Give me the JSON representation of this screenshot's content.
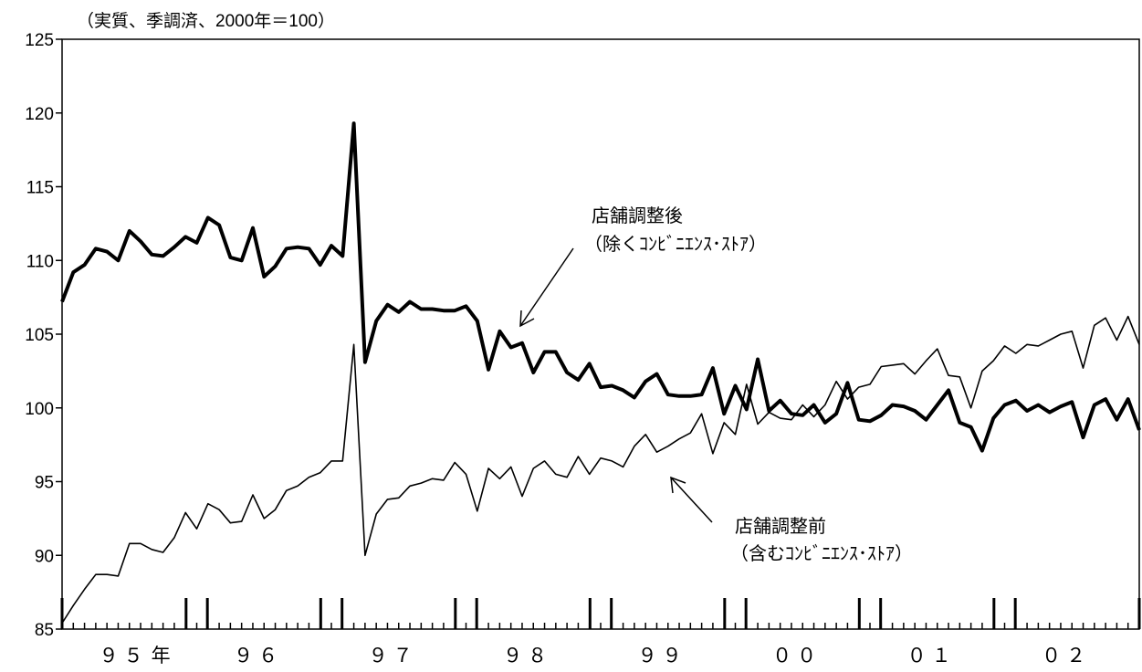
{
  "chart_data": {
    "type": "line",
    "title": "",
    "unit_note": "（実質、季調済、2000年＝100）",
    "ylim": [
      85,
      125
    ],
    "y_ticks": [
      "85",
      "90",
      "95",
      "100",
      "105",
      "110",
      "115",
      "120",
      "125"
    ],
    "x_year_labels": [
      "９５",
      "９６",
      "９７",
      "９８",
      "９９",
      "００",
      "０１",
      "０２"
    ],
    "x_year_suffix": "年",
    "grid": false,
    "series": [
      {
        "name": "店舗調整後（除くｺﾝﾋﾞﾆｴﾝｽ･ｽﾄｱ）",
        "style": "thick",
        "values": [
          107.2,
          109.2,
          109.7,
          110.8,
          110.6,
          110.0,
          112.0,
          111.3,
          110.4,
          110.3,
          110.9,
          111.6,
          111.2,
          112.9,
          112.4,
          110.2,
          110.0,
          112.2,
          108.9,
          109.6,
          110.8,
          110.9,
          110.8,
          109.7,
          111.0,
          110.3,
          119.3,
          103.1,
          105.9,
          107.0,
          106.5,
          107.2,
          106.7,
          106.7,
          106.6,
          106.6,
          106.9,
          105.9,
          102.6,
          105.2,
          104.1,
          104.4,
          102.4,
          103.8,
          103.8,
          102.4,
          101.9,
          103.0,
          101.4,
          101.5,
          101.2,
          100.7,
          101.8,
          102.3,
          100.9,
          100.8,
          100.8,
          100.9,
          102.7,
          99.6,
          101.5,
          99.9,
          103.3,
          99.8,
          100.5,
          99.6,
          99.5,
          100.2,
          99.0,
          99.6,
          101.7,
          99.2,
          99.1,
          99.5,
          100.2,
          100.1,
          99.8,
          99.2,
          100.2,
          101.2,
          99.0,
          98.7,
          97.1,
          99.3,
          100.2,
          100.5,
          99.8,
          100.2,
          99.7,
          100.1,
          100.4,
          98.0,
          100.2,
          100.6,
          99.2,
          100.6,
          98.5
        ]
      },
      {
        "name": "店舗調整前（含むｺﾝﾋﾞﾆｴﾝｽ･ｽﾄｱ）",
        "style": "thin",
        "values": [
          85.4,
          86.6,
          87.7,
          88.7,
          88.7,
          88.6,
          90.8,
          90.8,
          90.4,
          90.2,
          91.2,
          92.9,
          91.8,
          93.5,
          93.1,
          92.2,
          92.3,
          94.1,
          92.5,
          93.1,
          94.4,
          94.7,
          95.3,
          95.6,
          96.4,
          96.4,
          104.3,
          90.0,
          92.8,
          93.8,
          93.9,
          94.7,
          94.9,
          95.2,
          95.1,
          96.3,
          95.5,
          93.0,
          95.9,
          95.2,
          96.0,
          94.0,
          95.9,
          96.4,
          95.5,
          95.3,
          96.7,
          95.5,
          96.6,
          96.4,
          96.0,
          97.4,
          98.2,
          97.0,
          97.4,
          97.9,
          98.3,
          99.6,
          96.9,
          99.0,
          98.2,
          101.6,
          98.9,
          99.7,
          99.3,
          99.2,
          100.2,
          99.4,
          100.2,
          101.8,
          100.6,
          101.4,
          101.6,
          102.8,
          102.9,
          103.0,
          102.3,
          103.2,
          104.0,
          102.2,
          102.1,
          100.0,
          102.5,
          103.2,
          104.2,
          103.7,
          104.3,
          104.2,
          104.6,
          105.0,
          105.2,
          102.7,
          105.6,
          106.1,
          104.6,
          106.2,
          104.3
        ]
      }
    ],
    "annotations": [
      {
        "lines": [
          "店舗調整後",
          "（除くｺﾝﾋﾞﾆｴﾝｽ･ｽﾄｱ）"
        ],
        "points_to": "店舗調整後（除くｺﾝﾋﾞﾆｴﾝｽ･ｽﾄｱ）"
      },
      {
        "lines": [
          "店舗調整前",
          "（含むｺﾝﾋﾞﾆｴﾝｽ･ｽﾄｱ）"
        ],
        "points_to": "店舗調整前（含むｺﾝﾋﾞﾆｴﾝｽ･ｽﾄｱ）"
      }
    ]
  }
}
